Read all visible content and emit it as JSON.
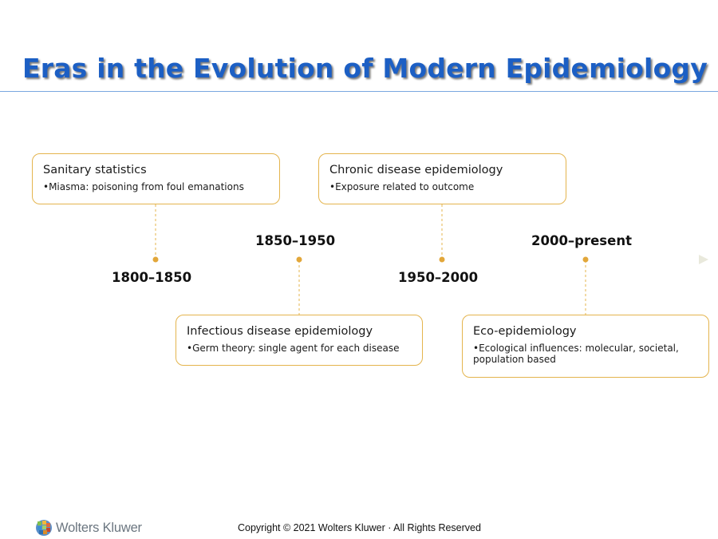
{
  "title": "Eras in the Evolution of Modern Epidemiology",
  "colors": {
    "title": "#1c5fc4",
    "box_border": "#e4b44d",
    "marker": "#e2a73a",
    "connector": "#e4b44d",
    "timeline": "#ecece0"
  },
  "eras": [
    {
      "period": "1800–1850",
      "heading": "Sanitary statistics",
      "detail": "•Miasma: poisoning from foul emanations"
    },
    {
      "period": "1850–1950",
      "heading": "Infectious disease epidemiology",
      "detail": "•Germ theory: single agent for each disease"
    },
    {
      "period": "1950–2000",
      "heading": "Chronic disease epidemiology",
      "detail": "•Exposure related to outcome"
    },
    {
      "period": "2000–present",
      "heading": "Eco-epidemiology",
      "detail": "•Ecological influences: molecular, societal, population based"
    }
  ],
  "footer": {
    "brand": "Wolters Kluwer",
    "brand_icon": "wolters-kluwer-logo-icon",
    "copyright": "Copyright © 2021 Wolters Kluwer · All Rights Reserved"
  }
}
